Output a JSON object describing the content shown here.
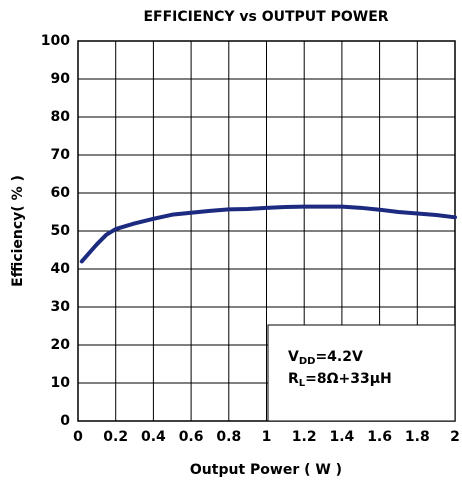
{
  "chart_data": {
    "type": "line",
    "title": "EFFICIENCY vs OUTPUT POWER",
    "x_label": "Output Power ( W )",
    "y_label": "Efficiency( % )",
    "x": [
      0.02,
      0.1,
      0.15,
      0.2,
      0.3,
      0.4,
      0.5,
      0.6,
      0.7,
      0.8,
      0.9,
      1.0,
      1.1,
      1.2,
      1.3,
      1.4,
      1.5,
      1.6,
      1.7,
      1.8,
      1.9,
      2.0
    ],
    "series": [
      {
        "color": "#1c2a80",
        "values": [
          42,
          46.5,
          49,
          50.5,
          52,
          53.2,
          54.3,
          54.8,
          55.3,
          55.7,
          55.8,
          56.1,
          56.3,
          56.4,
          56.4,
          56.4,
          56.1,
          55.6,
          55,
          54.6,
          54.2,
          53.6
        ]
      }
    ],
    "xlim": [
      0,
      2
    ],
    "xticks": [
      0,
      0.2,
      0.4,
      0.6,
      0.8,
      1,
      1.2,
      1.4,
      1.6,
      1.8,
      2
    ],
    "ylim": [
      0,
      100
    ],
    "yticks": [
      0,
      10,
      20,
      30,
      40,
      50,
      60,
      70,
      80,
      90,
      100
    ],
    "grid": true,
    "annotations": [
      [
        "V",
        "DD",
        "=4.2V"
      ],
      [
        "R",
        "L",
        "=8Ω+33µH"
      ]
    ]
  }
}
